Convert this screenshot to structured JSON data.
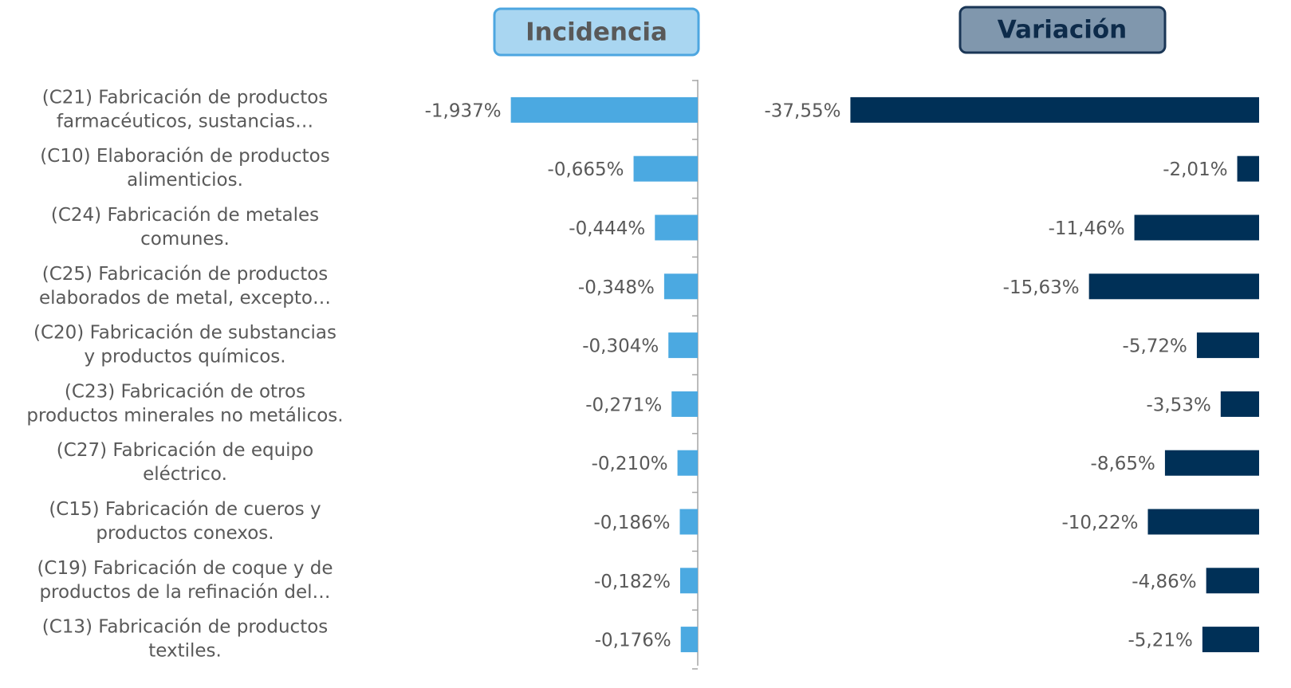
{
  "chart_data": [
    {
      "type": "bar",
      "title": "Incidencia",
      "color": "#4ba9e1",
      "categories": [
        [
          "(C21) Fabricación de productos",
          "farmacéuticos, sustancias…"
        ],
        [
          "(C10) Elaboración de productos",
          "alimenticios."
        ],
        [
          "(C24) Fabricación de metales",
          "comunes."
        ],
        [
          "(C25) Fabricación de productos",
          "elaborados de metal, excepto…"
        ],
        [
          "(C20) Fabricación de substancias",
          "y productos químicos."
        ],
        [
          "(C23) Fabricación de otros",
          "productos minerales no metálicos."
        ],
        [
          "(C27) Fabricación de equipo",
          "eléctrico."
        ],
        [
          "(C15) Fabricación de cueros y",
          "productos conexos."
        ],
        [
          "(C19) Fabricación de coque y de",
          "productos de la refinación del…"
        ],
        [
          "(C13) Fabricación de productos",
          "textiles."
        ]
      ],
      "values": [
        -1.937,
        -0.665,
        -0.444,
        -0.348,
        -0.304,
        -0.271,
        -0.21,
        -0.186,
        -0.182,
        -0.176
      ],
      "value_labels": [
        "-1,937%",
        "-0,665%",
        "-0,444%",
        "-0,348%",
        "-0,304%",
        "-0,271%",
        "-0,210%",
        "-0,186%",
        "-0,182%",
        "-0,176%"
      ],
      "xlim": [
        -2,
        0
      ]
    },
    {
      "type": "bar",
      "title": "Variación",
      "color": "#003057",
      "values": [
        -37.55,
        -2.01,
        -11.46,
        -15.63,
        -5.72,
        -3.53,
        -8.65,
        -10.22,
        -4.86,
        -5.21
      ],
      "value_labels": [
        "-37,55%",
        "-2,01%",
        "-11,46%",
        "-15,63%",
        "-5,72%",
        "-3,53%",
        "-8,65%",
        "-10,22%",
        "-4,86%",
        "-5,21%"
      ],
      "xlim": [
        -40,
        0
      ]
    }
  ]
}
